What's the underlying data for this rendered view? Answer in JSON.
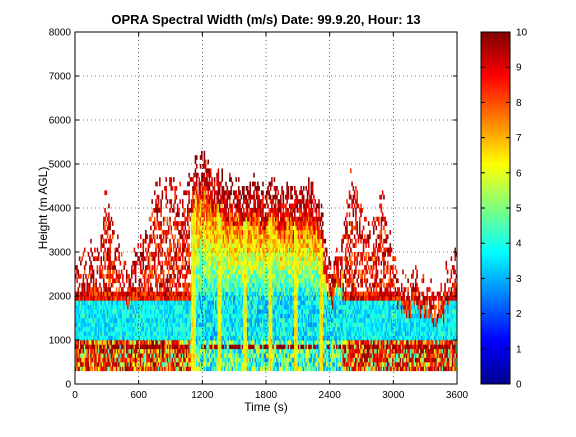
{
  "chart_data": {
    "type": "heatmap",
    "title": "OPRA Spectral Width (m/s)  Date: 99.9.20, Hour: 13",
    "xlabel": "Time (s)",
    "ylabel": "Height (m AGL)",
    "xlim": [
      0,
      3600
    ],
    "ylim": [
      0,
      8000
    ],
    "x_ticks": [
      "0",
      "600",
      "1200",
      "1800",
      "2400",
      "3000",
      "3600"
    ],
    "y_ticks": [
      "0",
      "1000",
      "2000",
      "3000",
      "4000",
      "5000",
      "6000",
      "7000",
      "8000"
    ],
    "grid": true,
    "colorbar": {
      "colormap": "jet",
      "range": [
        0,
        10
      ],
      "ticks": [
        "0",
        "1",
        "2",
        "3",
        "4",
        "5",
        "6",
        "7",
        "8",
        "9",
        "10"
      ]
    },
    "value_units": "m/s",
    "echo_top_profile": {
      "time_s": [
        0,
        120,
        240,
        300,
        360,
        480,
        600,
        700,
        800,
        850,
        900,
        1000,
        1100,
        1200,
        1300,
        1400,
        1500,
        1600,
        1700,
        1800,
        1900,
        2000,
        2100,
        2200,
        2300,
        2400,
        2500,
        2600,
        2700,
        2800,
        2900,
        3000,
        3100,
        3200,
        3300,
        3400,
        3500,
        3600
      ],
      "top_height_m": [
        2500,
        3200,
        2900,
        4600,
        3400,
        2600,
        3000,
        3800,
        4900,
        4300,
        4700,
        4400,
        4800,
        5200,
        4800,
        4600,
        4400,
        4700,
        4500,
        4300,
        4600,
        4400,
        4200,
        4500,
        4300,
        2600,
        3000,
        4700,
        4200,
        3600,
        4400,
        3000,
        2300,
        2600,
        2400,
        2200,
        2500,
        3100
      ]
    },
    "layers": [
      {
        "height_range_m": [
          300,
          1000
        ],
        "time_range_s": [
          0,
          3600
        ],
        "spectral_width_ms": "7-10 (intermittent)"
      },
      {
        "height_range_m": [
          1000,
          1800
        ],
        "time_range_s": [
          0,
          3600
        ],
        "spectral_width_ms": "2.5-4.5 (persistent band)"
      },
      {
        "height_range_m": [
          300,
          3500
        ],
        "time_range_s": [
          1100,
          2500
        ],
        "spectral_width_ms": "3-6 (core)"
      },
      {
        "height_range_m": [
          3500,
          5200
        ],
        "time_range_s": [
          800,
          2500
        ],
        "spectral_width_ms": "6-10 (upper edge)"
      }
    ]
  }
}
